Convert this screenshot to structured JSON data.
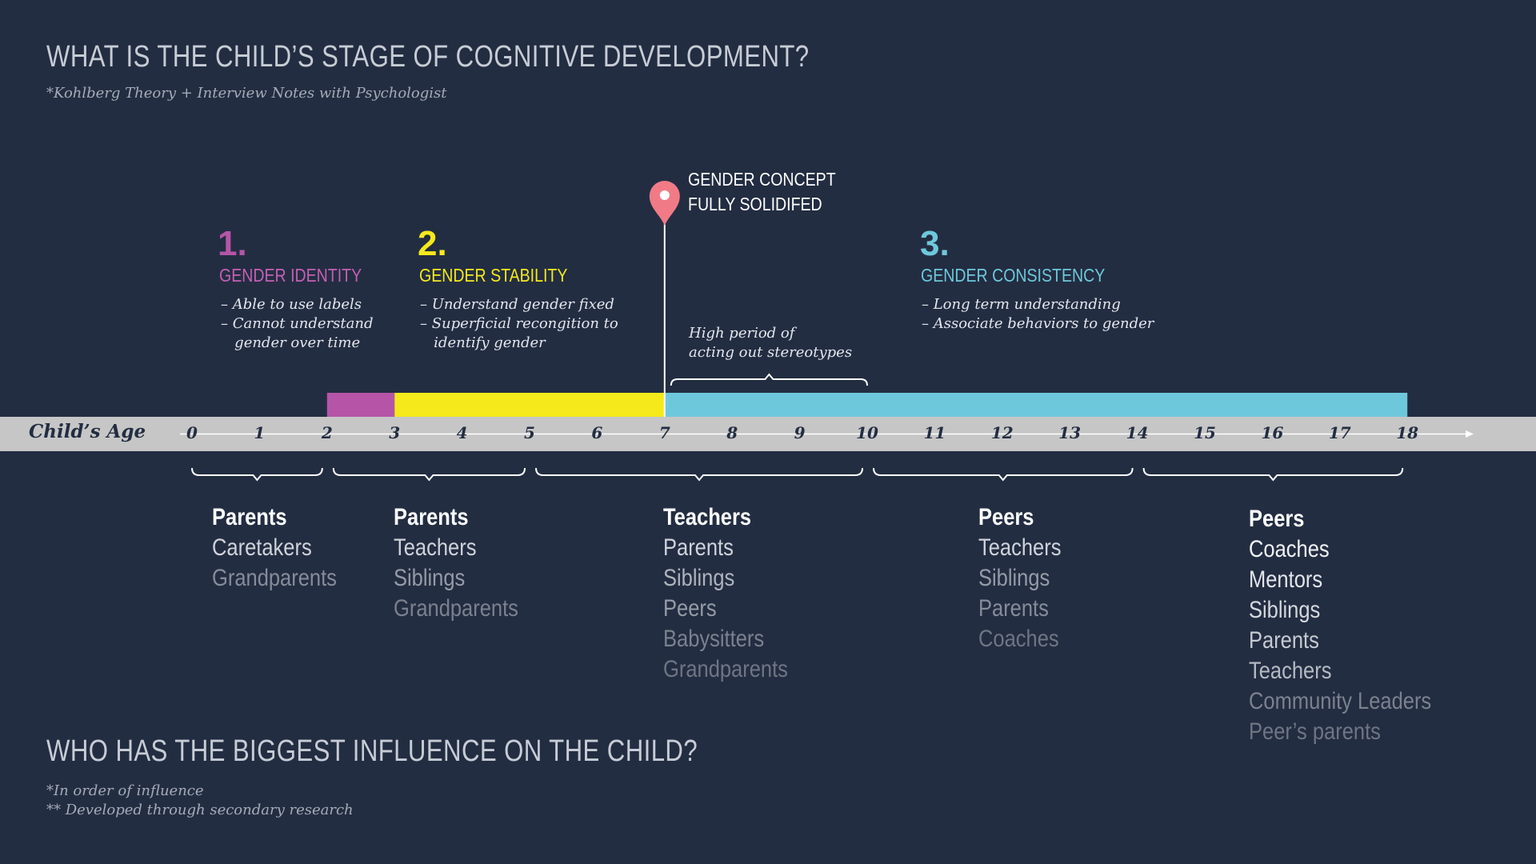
{
  "header": {
    "title": "WHAT IS THE CHILD’S STAGE OF COGNITIVE DEVELOPMENT?",
    "subtitle": "*Kohlberg Theory + Interview Notes with Psychologist"
  },
  "colors": {
    "background": "#232d42",
    "stage1": "#b655a7",
    "stage2": "#f5e91c",
    "stage3": "#6ec8db",
    "pin": "#f07b86",
    "axis": "#c6c6c6"
  },
  "stages": [
    {
      "number": "1.",
      "name": "GENDER IDENTITY",
      "notes": "– Able to use labels\n– Cannot understand\n   gender over time",
      "start_age": 2,
      "end_age": 3
    },
    {
      "number": "2.",
      "name": "GENDER STABILITY",
      "notes": "– Understand gender fixed\n– Superficial recongition to\n   identify gender",
      "start_age": 3,
      "end_age": 7
    },
    {
      "number": "3.",
      "name": "GENDER CONSISTENCY",
      "notes": "– Long term understanding\n– Associate behaviors to gender",
      "start_age": 7,
      "end_age": 18
    }
  ],
  "milestone": {
    "line1": "GENDER CONCEPT",
    "line2": "FULLY SOLIDIFED",
    "age": 7
  },
  "stereotype_period": {
    "text": "High period of\nacting out stereotypes",
    "start_age": 7,
    "end_age": 10
  },
  "axis": {
    "label": "Child’s Age",
    "ticks": [
      "0",
      "1",
      "2",
      "3",
      "4",
      "5",
      "6",
      "7",
      "8",
      "9",
      "10",
      "11",
      "12",
      "13",
      "14",
      "15",
      "16",
      "17",
      "18"
    ]
  },
  "influence": {
    "title": "WHO HAS THE BIGGEST INFLUENCE ON THE CHILD?",
    "note1": "*In order of influence",
    "note2": "** Developed through secondary research",
    "groups": [
      {
        "range": [
          0,
          2
        ],
        "people": [
          "Parents",
          "Caretakers",
          "Grandparents"
        ]
      },
      {
        "range": [
          2,
          5
        ],
        "people": [
          "Parents",
          "Teachers",
          "Siblings",
          "Grandparents"
        ]
      },
      {
        "range": [
          5,
          10
        ],
        "people": [
          "Teachers",
          "Parents",
          "Siblings",
          "Peers",
          "Babysitters",
          "Grandparents"
        ]
      },
      {
        "range": [
          10,
          14
        ],
        "people": [
          "Peers",
          "Teachers",
          "Siblings",
          "Parents",
          "Coaches"
        ]
      },
      {
        "range": [
          14,
          18
        ],
        "people": [
          "Peers",
          "Coaches",
          "Mentors",
          "Siblings",
          "Parents",
          "Teachers",
          "Community Leaders",
          "Peer’s parents"
        ]
      }
    ]
  }
}
